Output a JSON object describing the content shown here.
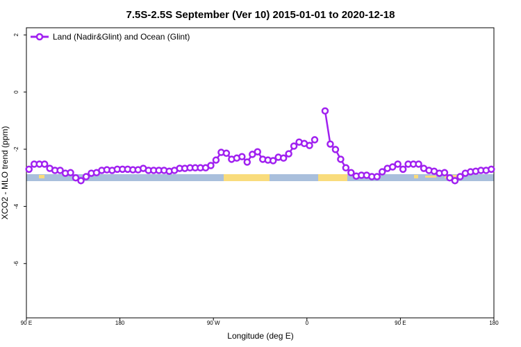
{
  "chart_data": {
    "type": "line",
    "title": "7.5S-2.5S September (Ver 10)   2015-01-01 to 2020-12-18",
    "x_label": "Longitude (deg E)",
    "y_label": "XCO2 - MLO trend (ppm)",
    "xlim": [
      90,
      540
    ],
    "ylim": [
      -7.9,
      2.25
    ],
    "xticks": [
      {
        "value": 90,
        "label": "90 E"
      },
      180,
      {
        "value": 270,
        "label": "90 W"
      },
      {
        "value": 360,
        "label": "0"
      },
      {
        "value": 450,
        "label": "90 E"
      },
      {
        "value": 540,
        "label": "180"
      }
    ],
    "yticks": [
      2,
      0,
      -2,
      -4,
      -6
    ],
    "legend": "top-left",
    "x": [
      92.5,
      97.5,
      102.5,
      107.5,
      112.5,
      117.5,
      122.5,
      127.5,
      132.5,
      137.5,
      142.5,
      147.5,
      152.5,
      157.5,
      162.5,
      167.5,
      172.5,
      177.5,
      182.5,
      187.5,
      192.5,
      197.5,
      202.5,
      207.5,
      212.5,
      217.5,
      222.5,
      227.5,
      232.5,
      237.5,
      242.5,
      247.5,
      252.5,
      257.5,
      262.5,
      267.5,
      272.5,
      277.5,
      282.5,
      287.5,
      292.5,
      297.5,
      302.5,
      307.5,
      312.5,
      317.5,
      322.5,
      327.5,
      332.5,
      337.5,
      342.5,
      347.5,
      352.5,
      357.5,
      362.5,
      367.5,
      372.5,
      377.5,
      382.5,
      387.5,
      392.5,
      397.5,
      402.5,
      407.5,
      412.5,
      417.5,
      422.5,
      427.5,
      432.5,
      437.5,
      442.5,
      447.5,
      452.5,
      457.5,
      462.5,
      467.5,
      472.5,
      477.5,
      482.5,
      487.5,
      492.5,
      497.5,
      502.5,
      507.5,
      512.5,
      517.5,
      522.5,
      527.5,
      532.5,
      537.5
    ],
    "series": [
      {
        "name": "Land (Nadir&Glint) and Ocean (Glint)",
        "color": "#a020f0",
        "values": [
          -2.7,
          -2.52,
          -2.52,
          -2.52,
          -2.67,
          -2.74,
          -2.74,
          -2.84,
          -2.82,
          -3.0,
          -3.1,
          -2.96,
          -2.84,
          -2.82,
          -2.74,
          -2.72,
          -2.74,
          -2.7,
          -2.7,
          -2.7,
          -2.72,
          -2.72,
          -2.67,
          -2.74,
          -2.74,
          -2.74,
          -2.74,
          -2.77,
          -2.74,
          -2.67,
          -2.67,
          -2.65,
          -2.65,
          -2.65,
          -2.65,
          -2.57,
          -2.38,
          -2.11,
          -2.14,
          -2.35,
          -2.31,
          -2.26,
          -2.45,
          -2.18,
          -2.09,
          -2.35,
          -2.38,
          -2.4,
          -2.28,
          -2.31,
          -2.16,
          -1.89,
          -1.75,
          -1.8,
          -1.87,
          -1.67,
          null,
          -0.66,
          -1.82,
          -2.01,
          -2.35,
          -2.65,
          -2.82,
          -2.94,
          -2.91,
          -2.91,
          -2.96,
          -2.96,
          -2.79,
          -2.67,
          -2.62,
          -2.52,
          -2.7,
          -2.52,
          -2.52,
          -2.52,
          -2.67,
          -2.74,
          -2.77,
          -2.84,
          -2.82,
          -3.0,
          -3.1,
          -2.96,
          -2.84,
          -2.79,
          -2.77,
          -2.74,
          -2.74,
          -2.7
        ]
      }
    ]
  }
}
